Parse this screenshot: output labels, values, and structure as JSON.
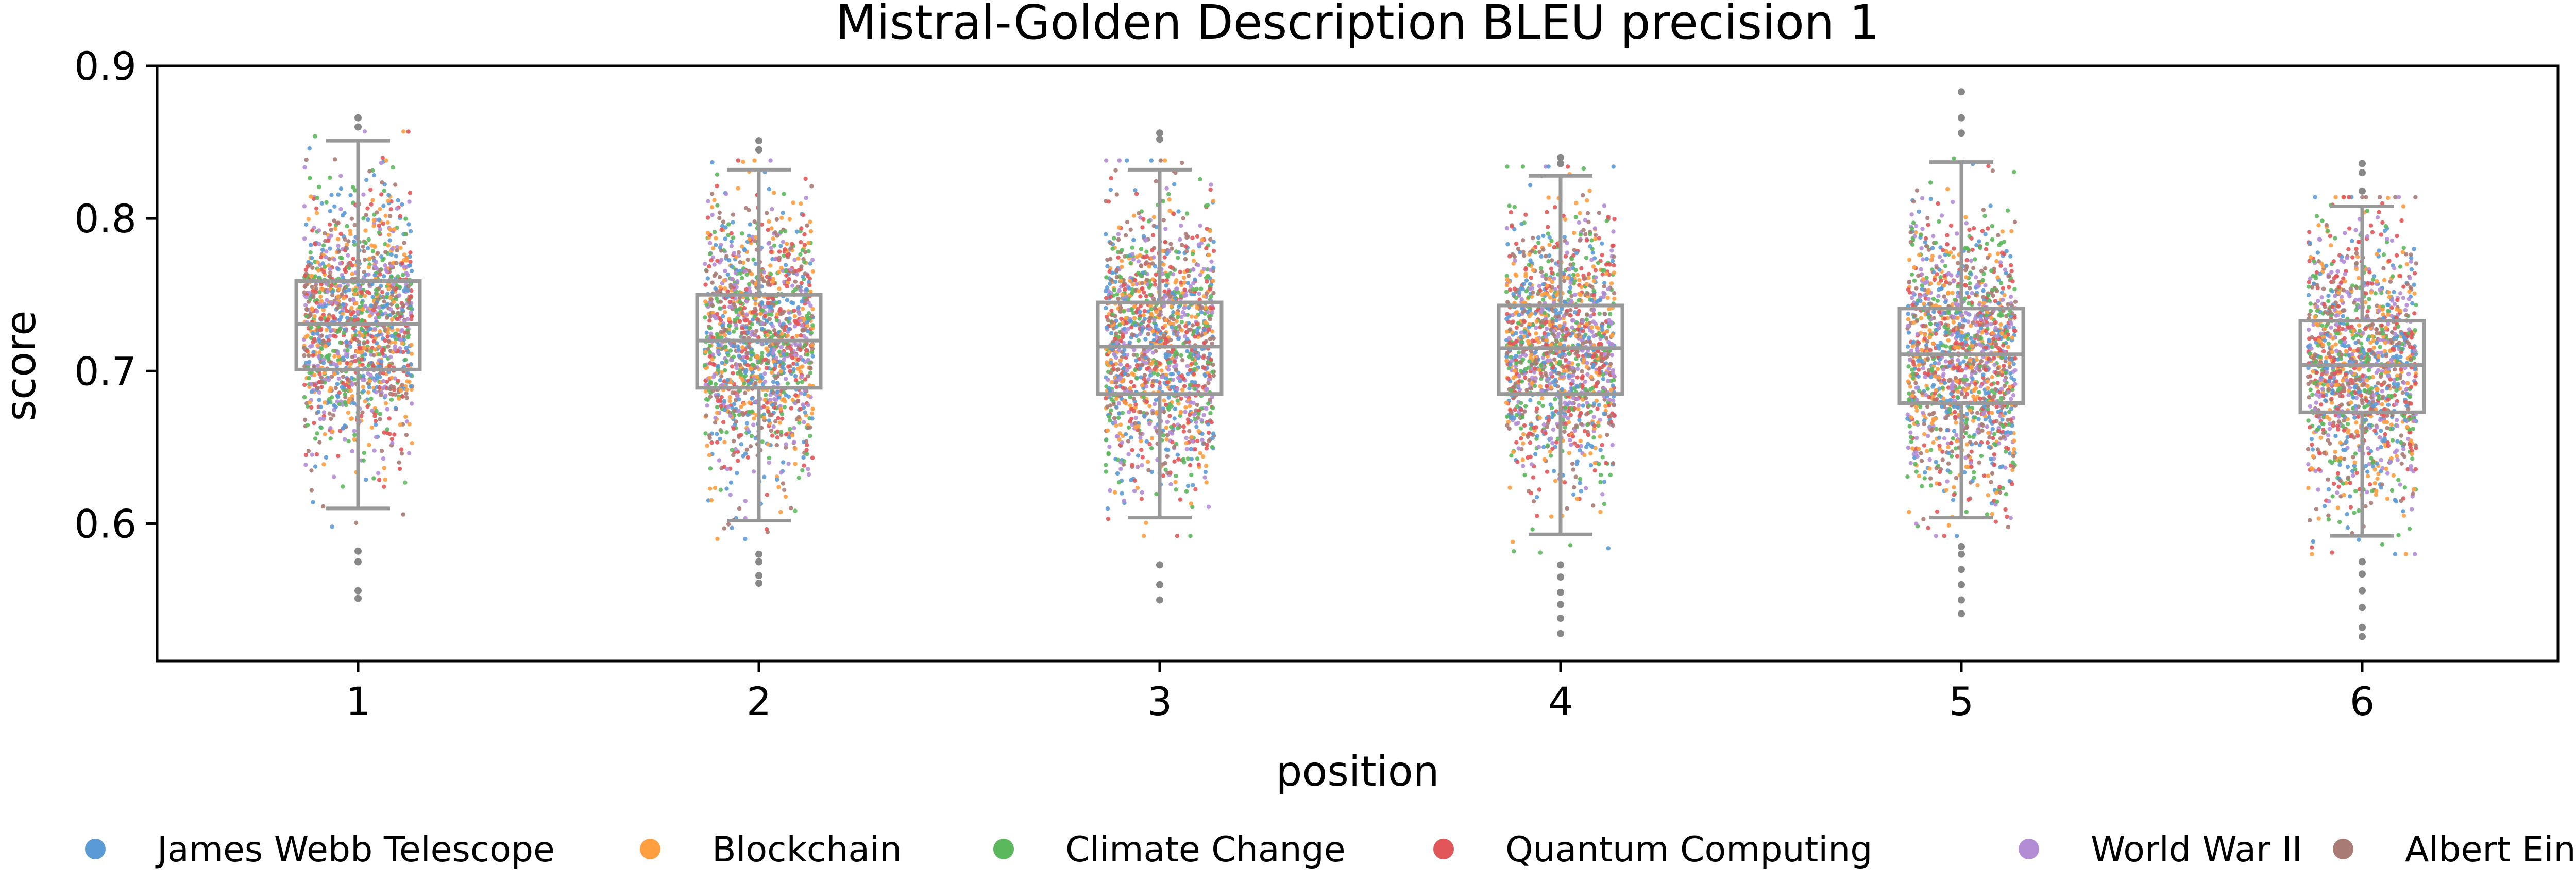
{
  "chart_data": {
    "type": "scatter",
    "subtype": "strip-and-box",
    "title": "Mistral-Golden Description BLEU precision 1",
    "xlabel": "position",
    "ylabel": "score",
    "ylim": [
      0.51,
      0.9
    ],
    "yticks": [
      0.6,
      0.7,
      0.8,
      0.9
    ],
    "categories": [
      "1",
      "2",
      "3",
      "4",
      "5",
      "6"
    ],
    "grid": false,
    "legend_placement": "bottom",
    "box_color": "#999999",
    "boxes": [
      {
        "position": "1",
        "q1": 0.701,
        "median": 0.731,
        "q3": 0.759,
        "whisker_low": 0.61,
        "whisker_high": 0.851
      },
      {
        "position": "2",
        "q1": 0.689,
        "median": 0.72,
        "q3": 0.75,
        "whisker_low": 0.602,
        "whisker_high": 0.832
      },
      {
        "position": "3",
        "q1": 0.685,
        "median": 0.716,
        "q3": 0.745,
        "whisker_low": 0.604,
        "whisker_high": 0.832
      },
      {
        "position": "4",
        "q1": 0.685,
        "median": 0.715,
        "q3": 0.743,
        "whisker_low": 0.593,
        "whisker_high": 0.828
      },
      {
        "position": "5",
        "q1": 0.679,
        "median": 0.711,
        "q3": 0.741,
        "whisker_low": 0.604,
        "whisker_high": 0.837
      },
      {
        "position": "6",
        "q1": 0.673,
        "median": 0.704,
        "q3": 0.733,
        "whisker_low": 0.592,
        "whisker_high": 0.808
      }
    ],
    "outliers": [
      {
        "position": "1",
        "values": [
          0.556,
          0.551,
          0.575,
          0.582,
          0.866,
          0.86
        ]
      },
      {
        "position": "2",
        "values": [
          0.561,
          0.566,
          0.575,
          0.58,
          0.851,
          0.845
        ]
      },
      {
        "position": "3",
        "values": [
          0.55,
          0.56,
          0.573,
          0.856,
          0.852
        ]
      },
      {
        "position": "4",
        "values": [
          0.528,
          0.538,
          0.547,
          0.555,
          0.565,
          0.573,
          0.836,
          0.84
        ]
      },
      {
        "position": "5",
        "values": [
          0.541,
          0.55,
          0.56,
          0.57,
          0.58,
          0.585,
          0.856,
          0.866,
          0.883
        ]
      },
      {
        "position": "6",
        "values": [
          0.526,
          0.532,
          0.545,
          0.556,
          0.567,
          0.575,
          0.818,
          0.83,
          0.836
        ]
      }
    ],
    "series": [
      {
        "name": "James Webb Telescope",
        "color": "#5b9bd5"
      },
      {
        "name": "Blockchain",
        "color": "#ff9f40"
      },
      {
        "name": "Climate Change",
        "color": "#5cb85c"
      },
      {
        "name": "Quantum Computing",
        "color": "#e15759"
      },
      {
        "name": "World War II",
        "color": "#b28dd6"
      },
      {
        "name": "Albert Einstein",
        "color": "#a87c74"
      }
    ]
  }
}
